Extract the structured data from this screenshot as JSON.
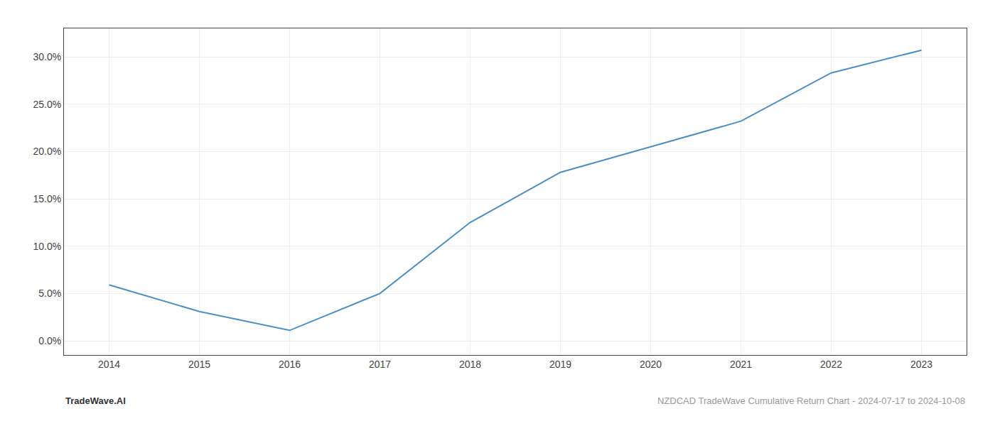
{
  "chart_data": {
    "type": "line",
    "x": [
      2014,
      2015,
      2016,
      2017,
      2018,
      2019,
      2020,
      2021,
      2022,
      2023
    ],
    "values": [
      5.9,
      3.1,
      1.1,
      5.0,
      12.5,
      17.8,
      20.5,
      23.2,
      28.3,
      30.7
    ],
    "color": "#4a90c4",
    "xlim": [
      2013.5,
      2023.5
    ],
    "ylim": [
      -1.5,
      33.0
    ],
    "xticks": [
      2014,
      2015,
      2016,
      2017,
      2018,
      2019,
      2020,
      2021,
      2022,
      2023
    ],
    "yticks": [
      {
        "value": 0.0,
        "label": "0.0%"
      },
      {
        "value": 5.0,
        "label": "5.0%"
      },
      {
        "value": 10.0,
        "label": "10.0%"
      },
      {
        "value": 15.0,
        "label": "15.0%"
      },
      {
        "value": 20.0,
        "label": "20.0%"
      },
      {
        "value": 25.0,
        "label": "25.0%"
      },
      {
        "value": 30.0,
        "label": "30.0%"
      }
    ],
    "grid": true,
    "annotations": [
      "TradeWave.AI",
      "NZDCAD TradeWave Cumulative Return Chart - 2024-07-17 to 2024-10-08"
    ]
  }
}
